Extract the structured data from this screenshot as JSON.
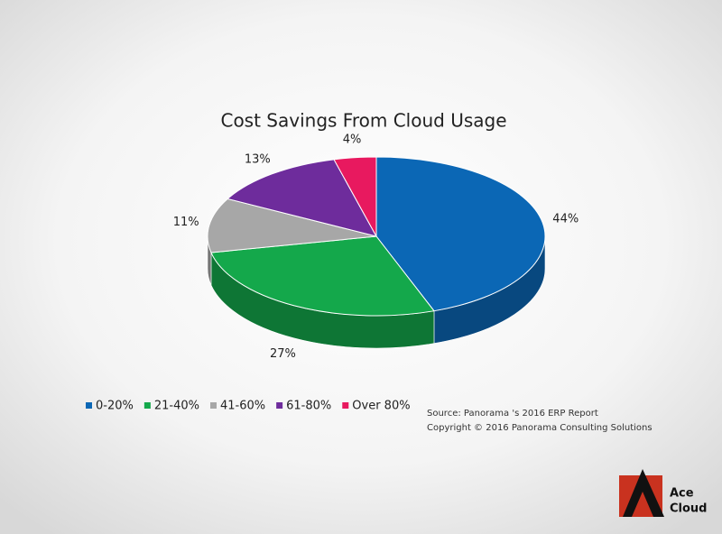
{
  "chart_data": {
    "type": "pie3d",
    "title": "Cost Savings From Cloud Usage",
    "categories": [
      "0-20%",
      "21-40%",
      "41-60%",
      "61-80%",
      "Over 80%"
    ],
    "values": [
      44,
      27,
      11,
      13,
      4
    ],
    "value_labels": [
      "44%",
      "27%",
      "11%",
      "13%",
      "4%"
    ],
    "colors": [
      "#0b67b5",
      "#14a84b",
      "#a7a7a7",
      "#6e2c9c",
      "#e8195f"
    ],
    "legend": "bottom",
    "source": "Source: Panorama 's 2016 ERP Report",
    "copyright": "Copyright © 2016 Panorama Consulting Solutions"
  },
  "logo": {
    "line1": "Ace",
    "line2": "Cloud"
  }
}
